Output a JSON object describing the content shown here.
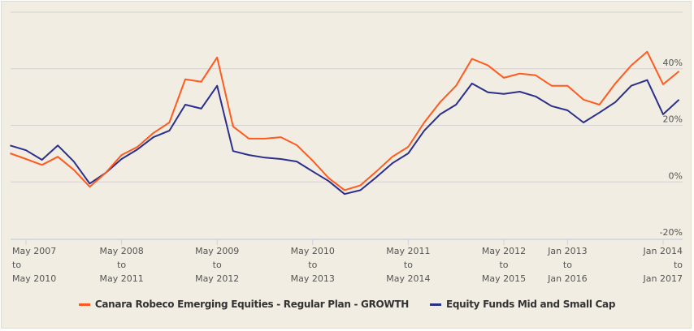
{
  "chart_data": {
    "type": "line",
    "title": "",
    "xlabel": "",
    "ylabel": "",
    "ylim": [
      -20,
      60
    ],
    "y_ticks": [
      {
        "value": 40,
        "label": "40%"
      },
      {
        "value": 20,
        "label": "20%"
      },
      {
        "value": 0,
        "label": "0%"
      },
      {
        "value": -20,
        "label": "-20%"
      }
    ],
    "grid": true,
    "legend_position": "bottom",
    "x_ticks": [
      {
        "date": "2007-05",
        "lines": [
          "May 2007",
          "to",
          "May 2010"
        ]
      },
      {
        "date": "2008-05",
        "lines": [
          "May 2008",
          "to",
          "May 2011"
        ]
      },
      {
        "date": "2009-05",
        "lines": [
          "May 2009",
          "to",
          "May 2012"
        ]
      },
      {
        "date": "2010-05",
        "lines": [
          "May 2010",
          "to",
          "May 2013"
        ]
      },
      {
        "date": "2011-05",
        "lines": [
          "May 2011",
          "to",
          "May 2014"
        ]
      },
      {
        "date": "2012-05",
        "lines": [
          "May 2012",
          "to",
          "May 2015"
        ]
      },
      {
        "date": "2013-01",
        "lines": [
          "Jan 2013",
          "to",
          "Jan 2016"
        ]
      },
      {
        "date": "2014-01",
        "lines": [
          "Jan 2014",
          "to",
          "Jan 2017"
        ]
      }
    ],
    "x": [
      "2007-03",
      "2007-05",
      "2007-07",
      "2007-09",
      "2007-11",
      "2008-01",
      "2008-03",
      "2008-05",
      "2008-07",
      "2008-09",
      "2008-11",
      "2009-01",
      "2009-03",
      "2009-05",
      "2009-07",
      "2009-09",
      "2009-11",
      "2010-01",
      "2010-03",
      "2010-05",
      "2010-07",
      "2010-09",
      "2010-11",
      "2011-01",
      "2011-03",
      "2011-05",
      "2011-07",
      "2011-09",
      "2011-11",
      "2012-01",
      "2012-03",
      "2012-05",
      "2012-07",
      "2012-09",
      "2012-11",
      "2013-01",
      "2013-03",
      "2013-05",
      "2013-07",
      "2013-09",
      "2013-11",
      "2014-01",
      "2014-03"
    ],
    "series": [
      {
        "name": "Canara Robeco Emerging Equities - Regular Plan - GROWTH",
        "color": "#ff5a1f",
        "values": [
          10.1,
          8.1,
          6.0,
          8.9,
          4.3,
          -1.7,
          3.2,
          9.5,
          12.4,
          17.3,
          21.0,
          36.3,
          35.4,
          44.0,
          19.6,
          15.3,
          15.3,
          15.8,
          13.0,
          7.5,
          1.4,
          -2.9,
          -1.2,
          3.7,
          8.9,
          12.4,
          21.0,
          28.2,
          34.0,
          43.5,
          41.2,
          36.8,
          38.3,
          37.7,
          34.0,
          34.0,
          29.1,
          27.3,
          34.8,
          41.2,
          46.0,
          34.5,
          39.1
        ]
      },
      {
        "name": "Equity Funds Mid and Small Cap",
        "color": "#2b2f8c",
        "values": [
          12.9,
          11.2,
          7.8,
          12.9,
          7.2,
          -0.6,
          3.2,
          8.1,
          11.5,
          15.8,
          18.1,
          27.3,
          25.9,
          34.0,
          10.9,
          9.5,
          8.6,
          8.1,
          7.2,
          3.7,
          0.3,
          -4.3,
          -2.9,
          1.7,
          6.6,
          10.1,
          18.1,
          23.9,
          27.3,
          34.8,
          31.7,
          31.1,
          31.9,
          30.2,
          26.8,
          25.3,
          21.0,
          24.5,
          28.2,
          34.0,
          36.0,
          23.9,
          29.1
        ]
      }
    ]
  }
}
